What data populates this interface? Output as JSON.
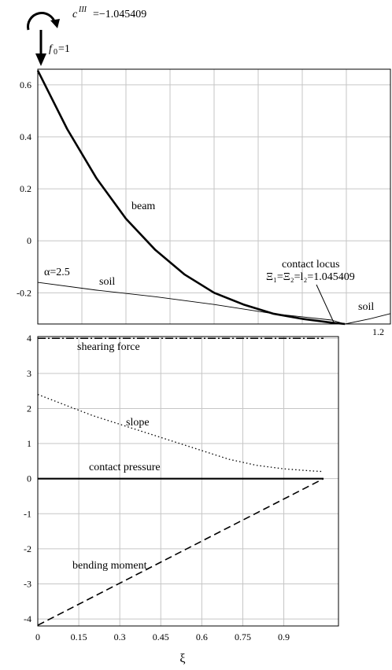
{
  "header": {
    "moment_label": "c",
    "moment_sup": "III",
    "moment_value": "=−1.045409",
    "force_label": "f",
    "force_sub": "0",
    "force_value": "=1"
  },
  "chart_data": [
    {
      "type": "line",
      "title": "",
      "xlabel": "",
      "ylabel": "",
      "xlim": [
        0,
        1.2
      ],
      "ylim": [
        -0.32,
        0.66
      ],
      "yticks": [
        "0.6",
        "0.4",
        "0.2",
        "0",
        "-0.2"
      ],
      "xtick_label": "1.2",
      "grid": true,
      "series": [
        {
          "name": "beam",
          "x": [
            0,
            0.1,
            0.2,
            0.3,
            0.4,
            0.5,
            0.6,
            0.7,
            0.8,
            0.9,
            1.0,
            1.045409
          ],
          "y": [
            0.655,
            0.43,
            0.24,
            0.085,
            -0.035,
            -0.13,
            -0.2,
            -0.245,
            -0.28,
            -0.3,
            -0.315,
            -0.32
          ]
        },
        {
          "name": "soil",
          "x": [
            0,
            0.2,
            0.4,
            0.6,
            0.8,
            1.0,
            1.045409
          ],
          "y": [
            -0.16,
            -0.19,
            -0.215,
            -0.245,
            -0.28,
            -0.305,
            -0.32
          ]
        },
        {
          "name": "soil",
          "x": [
            1.045409,
            1.13,
            1.2
          ],
          "y": [
            -0.32,
            -0.3,
            -0.28
          ]
        }
      ],
      "annotations": {
        "beam": "beam",
        "soil_left": "soil",
        "soil_right": "soil",
        "alpha": "α=2.5",
        "contact_locus": "contact locus",
        "contact_value": "Ξ₁=Ξ₂=l₂=1.045409"
      }
    },
    {
      "type": "line",
      "title": "",
      "xlabel": "ξ",
      "ylabel": "",
      "xlim": [
        0,
        1.1
      ],
      "ylim": [
        -4.2,
        4.05
      ],
      "xticks": [
        "0",
        "0.15",
        "0.3",
        "0.45",
        "0.6",
        "0.75",
        "0.9"
      ],
      "yticks": [
        "4",
        "3",
        "2",
        "1",
        "0",
        "-1",
        "-2",
        "-3",
        "-4"
      ],
      "grid": true,
      "series": [
        {
          "name": "shearing force",
          "x": [
            0,
            1.045409
          ],
          "y": [
            4,
            4
          ]
        },
        {
          "name": "slope",
          "x": [
            0,
            0.1,
            0.2,
            0.3,
            0.4,
            0.5,
            0.6,
            0.7,
            0.8,
            0.9,
            1.0,
            1.045409
          ],
          "y": [
            2.4,
            2.1,
            1.8,
            1.55,
            1.3,
            1.05,
            0.8,
            0.55,
            0.38,
            0.28,
            0.22,
            0.2
          ]
        },
        {
          "name": "contact pressure",
          "x": [
            0,
            1.045409
          ],
          "y": [
            0,
            0
          ]
        },
        {
          "name": "bending moment",
          "x": [
            0,
            1.045409
          ],
          "y": [
            -4.18,
            0
          ]
        }
      ]
    }
  ]
}
